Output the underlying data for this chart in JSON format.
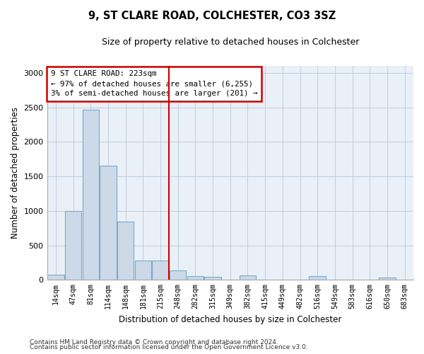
{
  "title": "9, ST CLARE ROAD, COLCHESTER, CO3 3SZ",
  "subtitle": "Size of property relative to detached houses in Colchester",
  "xlabel": "Distribution of detached houses by size in Colchester",
  "ylabel": "Number of detached properties",
  "bar_labels": [
    "14sqm",
    "47sqm",
    "81sqm",
    "114sqm",
    "148sqm",
    "181sqm",
    "215sqm",
    "248sqm",
    "282sqm",
    "315sqm",
    "349sqm",
    "382sqm",
    "415sqm",
    "449sqm",
    "482sqm",
    "516sqm",
    "549sqm",
    "583sqm",
    "616sqm",
    "650sqm",
    "683sqm"
  ],
  "bar_values": [
    75,
    995,
    2460,
    1650,
    840,
    280,
    280,
    140,
    55,
    45,
    0,
    60,
    0,
    0,
    0,
    50,
    0,
    0,
    0,
    30,
    0
  ],
  "bar_color": "#ccd9e8",
  "bar_edge_color": "#7aaac8",
  "property_line_label": "9 ST CLARE ROAD: 223sqm",
  "annotation_line1": "← 97% of detached houses are smaller (6,255)",
  "annotation_line2": "3% of semi-detached houses are larger (201) →",
  "annotation_box_color": "#ffffff",
  "annotation_box_edge_color": "#cc0000",
  "vline_color": "#cc0000",
  "vline_x_index": 6,
  "ylim": [
    0,
    3100
  ],
  "yticks": [
    0,
    500,
    1000,
    1500,
    2000,
    2500,
    3000
  ],
  "footnote1": "Contains HM Land Registry data © Crown copyright and database right 2024.",
  "footnote2": "Contains public sector information licensed under the Open Government Licence v3.0.",
  "bg_color": "#eaf0f8"
}
